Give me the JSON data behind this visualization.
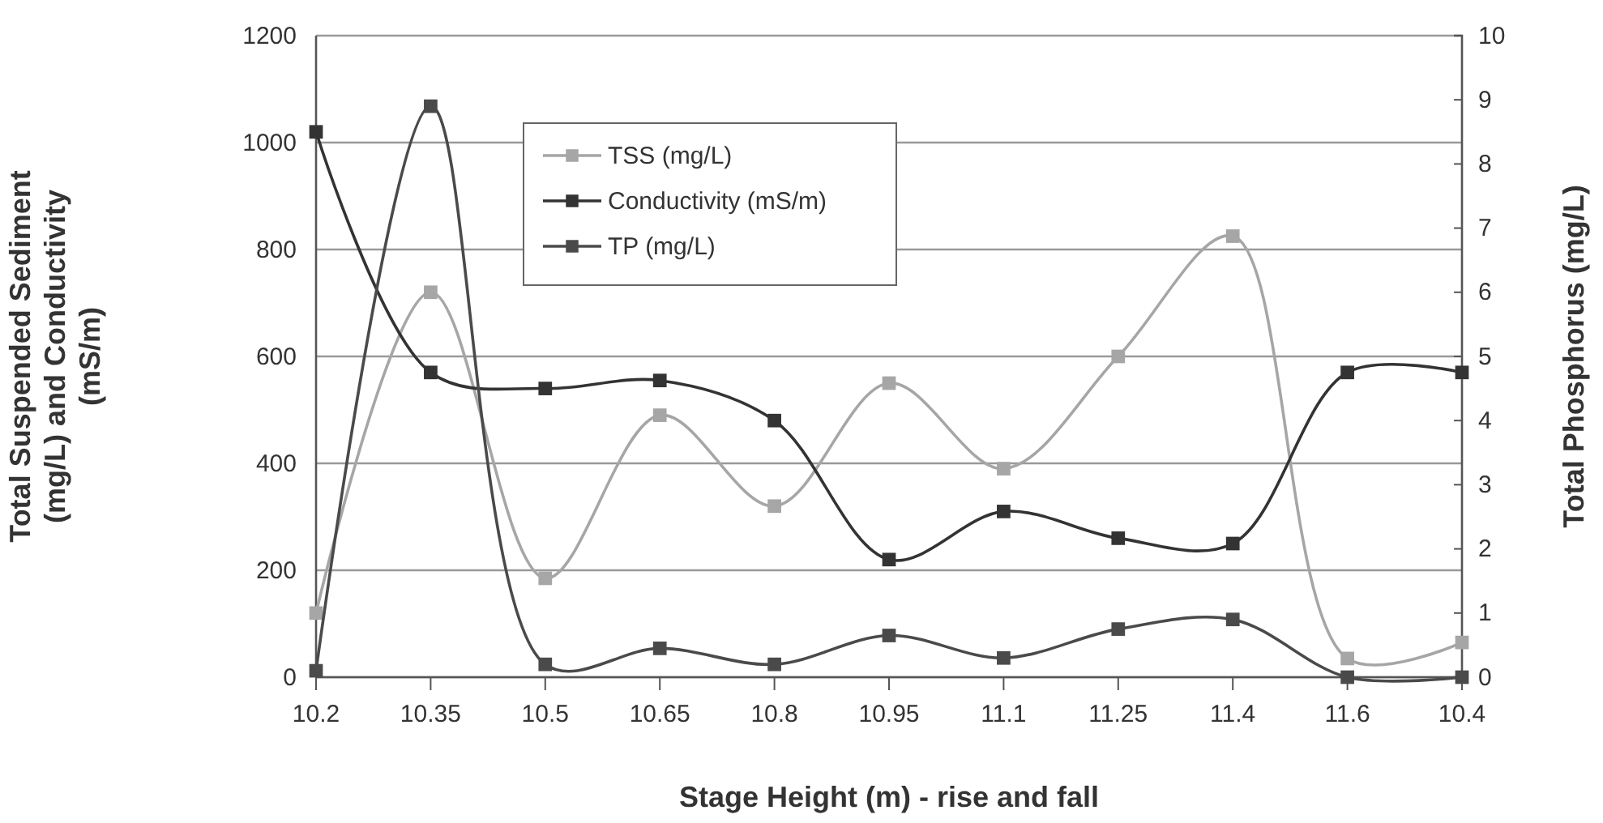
{
  "chart_data": {
    "type": "line",
    "xlabel": "Stage Height (m) - rise and fall",
    "ylabel": "Total Suspended Sediment (mg/L) and Conductivity (mS/m)",
    "y2label": "Total Phosphorus (mg/L)",
    "categories": [
      "10.2",
      "10.35",
      "10.5",
      "10.65",
      "10.8",
      "10.95",
      "11.1",
      "11.25",
      "11.4",
      "11.6",
      "10.4"
    ],
    "series": [
      {
        "name": "TSS (mg/L)",
        "color": "#a6a6a6",
        "values": [
          120,
          720,
          185,
          490,
          320,
          550,
          390,
          600,
          825,
          35,
          65
        ]
      },
      {
        "name": "Conductivity (mS/m)",
        "color": "#333333",
        "values": [
          1020,
          570,
          540,
          555,
          480,
          220,
          310,
          260,
          250,
          570,
          570
        ]
      },
      {
        "name": "TP (mg/L)",
        "color": "#4a4a4a",
        "axis": "y2",
        "values": [
          0.1,
          8.9,
          0.2,
          0.45,
          0.2,
          0.65,
          0.3,
          0.75,
          0.9,
          0,
          0
        ]
      }
    ],
    "ylim": [
      0,
      1200
    ],
    "yticks": [
      0,
      200,
      400,
      600,
      800,
      1000,
      1200
    ],
    "y2lim": [
      0,
      10
    ],
    "y2ticks": [
      0,
      1,
      2,
      3,
      4,
      5,
      6,
      7,
      8,
      9,
      10
    ],
    "grid": "y",
    "legend": "top",
    "marker": "square",
    "line_style": "solid"
  }
}
